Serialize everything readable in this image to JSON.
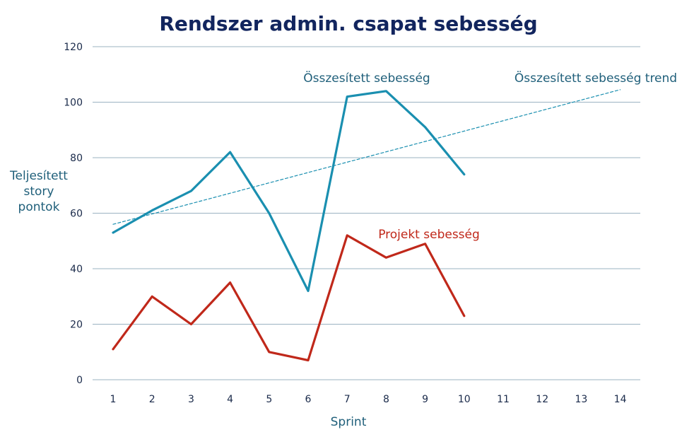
{
  "chart_data": {
    "type": "line",
    "title": "Rendszer admin. csapat sebesség",
    "xlabel": "Sprint",
    "ylabel_lines": [
      "Teljesített",
      "story",
      "pontok"
    ],
    "ylim": [
      0,
      120
    ],
    "yticks": [
      0,
      20,
      40,
      60,
      80,
      100,
      120
    ],
    "x": [
      1,
      2,
      3,
      4,
      5,
      6,
      7,
      8,
      9,
      10,
      11,
      12,
      13,
      14
    ],
    "grid": true,
    "series": [
      {
        "name": "Összesített sebesség",
        "style": "solid",
        "x": [
          1,
          2,
          3,
          4,
          5,
          6,
          7,
          8,
          9,
          10
        ],
        "values": [
          53,
          61,
          68,
          82,
          60,
          32,
          102,
          104,
          91,
          74
        ]
      },
      {
        "name": "Projekt sebesség",
        "style": "solid",
        "x": [
          1,
          2,
          3,
          4,
          5,
          6,
          7,
          8,
          9,
          10
        ],
        "values": [
          11,
          30,
          20,
          35,
          10,
          7,
          52,
          44,
          49,
          23
        ]
      },
      {
        "name": "Összesített sebesség trend",
        "style": "dashed",
        "x": [
          1,
          14
        ],
        "values": [
          56,
          104.5
        ]
      }
    ]
  },
  "colors": {
    "title": "#12255e",
    "axis_text": "#1f5f7a",
    "tick_text": "#1a2a4a",
    "grid": "#9bb3c2",
    "series": [
      "#1a8fb0",
      "#c0281a",
      "#1a8fb0"
    ]
  }
}
